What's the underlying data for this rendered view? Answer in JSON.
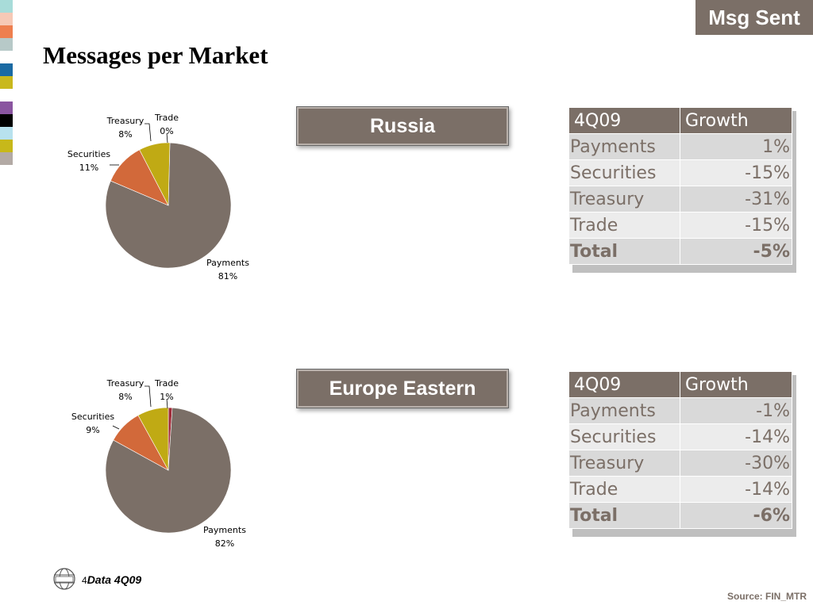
{
  "badge": "Msg Sent",
  "title": "Messages per Market",
  "stripes": [
    "#a8dcd9",
    "#f6c9b6",
    "#ee7f4f",
    "#b7c9c8",
    "#ffffff",
    "#1a6aa3",
    "#c9b81c",
    "#ffffff",
    "#8a55a0",
    "#000000",
    "#b8e2ee",
    "#c7b81a",
    "#b3aaa5"
  ],
  "colors": {
    "Payments": "#7b6f67",
    "Securities": "#d2693a",
    "Treasury": "#c0aa14",
    "Trade": "#a02b3a"
  },
  "markets": [
    {
      "name": "Russia",
      "table": {
        "header": [
          "4Q09",
          "Growth"
        ],
        "rows": [
          {
            "cat": "Payments",
            "val": "1%"
          },
          {
            "cat": "Securities",
            "val": "-15%"
          },
          {
            "cat": "Treasury",
            "val": "-31%"
          },
          {
            "cat": "Trade",
            "val": "-15%"
          }
        ],
        "total": {
          "cat": "Total",
          "val": "-5%"
        }
      }
    },
    {
      "name": "Europe Eastern",
      "table": {
        "header": [
          "4Q09",
          "Growth"
        ],
        "rows": [
          {
            "cat": "Payments",
            "val": "-1%"
          },
          {
            "cat": "Securities",
            "val": "-14%"
          },
          {
            "cat": "Treasury",
            "val": "-30%"
          },
          {
            "cat": "Trade",
            "val": "-14%"
          }
        ],
        "total": {
          "cat": "Total",
          "val": "-6%"
        }
      }
    }
  ],
  "chart_data": [
    {
      "type": "pie",
      "categories": [
        "Payments",
        "Securities",
        "Treasury",
        "Trade"
      ],
      "values": [
        81,
        11,
        8,
        0
      ],
      "labels": [
        "81%",
        "11%",
        "8%",
        "0%"
      ]
    },
    {
      "type": "pie",
      "categories": [
        "Payments",
        "Securities",
        "Treasury",
        "Trade"
      ],
      "values": [
        82,
        9,
        8,
        1
      ],
      "labels": [
        "82%",
        "9%",
        "8%",
        "1%"
      ]
    }
  ],
  "footer": {
    "num": "4",
    "note": "Data 4Q09",
    "source": "Source: FIN_MTR"
  }
}
